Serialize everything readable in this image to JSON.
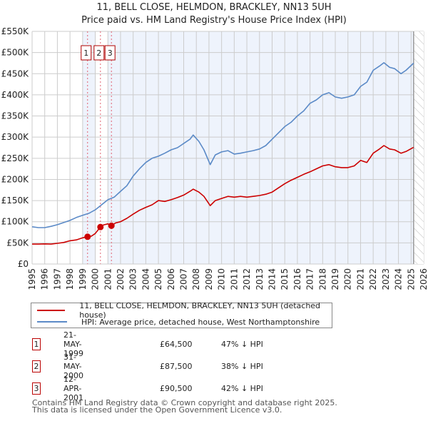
{
  "chart_data": {
    "type": "line",
    "title": "11, BELL CLOSE, HELMDON, BRACKLEY, NN13 5UH",
    "subtitle": "Price paid vs. HM Land Registry's House Price Index (HPI)",
    "xlabel": "",
    "ylabel": "",
    "xlim": [
      1995,
      2026
    ],
    "ylim": [
      0,
      550000
    ],
    "x_ticks": [
      "1995",
      "1996",
      "1997",
      "1998",
      "1999",
      "2000",
      "2001",
      "2002",
      "2003",
      "2004",
      "2005",
      "2006",
      "2007",
      "2008",
      "2009",
      "2010",
      "2011",
      "2012",
      "2013",
      "2014",
      "2015",
      "2016",
      "2017",
      "2018",
      "2019",
      "2020",
      "2021",
      "2022",
      "2023",
      "2024",
      "2025",
      "2026"
    ],
    "y_ticks": [
      {
        "value": 0,
        "label": "£0"
      },
      {
        "value": 50000,
        "label": "£50K"
      },
      {
        "value": 100000,
        "label": "£100K"
      },
      {
        "value": 150000,
        "label": "£150K"
      },
      {
        "value": 200000,
        "label": "£200K"
      },
      {
        "value": 250000,
        "label": "£250K"
      },
      {
        "value": 300000,
        "label": "£300K"
      },
      {
        "value": 350000,
        "label": "£350K"
      },
      {
        "value": 400000,
        "label": "£400K"
      },
      {
        "value": 450000,
        "label": "£450K"
      },
      {
        "value": 500000,
        "label": "£500K"
      },
      {
        "value": 550000,
        "label": "£550K"
      }
    ],
    "grid": true,
    "future_hatch_from": 2025.2,
    "shaded_bands": [
      [
        1999.0,
        2000.0
      ],
      [
        2001.0,
        2026.0
      ]
    ],
    "series": [
      {
        "name": "11, BELL CLOSE, HELMDON, BRACKLEY, NN13 5UH (detached house)",
        "color": "#cc0000",
        "x": [
          1995.0,
          1995.5,
          1996.0,
          1996.5,
          1997.0,
          1997.5,
          1998.0,
          1998.5,
          1999.0,
          1999.39,
          1999.7,
          2000.0,
          2000.41,
          2000.6,
          2001.0,
          2001.28,
          2001.6,
          2002.0,
          2002.5,
          2003.0,
          2003.5,
          2004.0,
          2004.5,
          2005.0,
          2005.5,
          2006.0,
          2006.5,
          2007.0,
          2007.5,
          2007.75,
          2008.2,
          2008.6,
          2009.1,
          2009.5,
          2010.0,
          2010.5,
          2011.0,
          2011.5,
          2012.0,
          2012.5,
          2013.0,
          2013.5,
          2014.0,
          2014.5,
          2015.0,
          2015.5,
          2016.0,
          2016.5,
          2017.0,
          2017.5,
          2018.0,
          2018.5,
          2019.0,
          2019.5,
          2020.0,
          2020.5,
          2021.0,
          2021.5,
          2022.0,
          2022.5,
          2022.85,
          2023.3,
          2023.7,
          2024.2,
          2024.6,
          2025.2
        ],
        "values": [
          47000,
          47000,
          47500,
          47000,
          49000,
          51000,
          55000,
          57000,
          62000,
          64500,
          66000,
          72000,
          87500,
          92000,
          95000,
          90500,
          97000,
          100000,
          108000,
          118000,
          127000,
          134000,
          140000,
          150000,
          148000,
          152000,
          157000,
          163000,
          172000,
          177000,
          170000,
          160000,
          138000,
          150000,
          155000,
          160000,
          158000,
          160000,
          158000,
          160000,
          162000,
          165000,
          170000,
          180000,
          190000,
          198000,
          205000,
          212000,
          218000,
          225000,
          232000,
          235000,
          230000,
          228000,
          228000,
          232000,
          245000,
          240000,
          262000,
          272000,
          280000,
          272000,
          270000,
          262000,
          266000,
          276000
        ]
      },
      {
        "name": "HPI: Average price, detached house, West Northamptonshire",
        "color": "#5b8ac7",
        "x": [
          1995.0,
          1995.5,
          1996.0,
          1996.5,
          1997.0,
          1997.5,
          1998.0,
          1998.5,
          1999.0,
          1999.5,
          2000.0,
          2000.5,
          2001.0,
          2001.5,
          2002.0,
          2002.5,
          2003.0,
          2003.5,
          2004.0,
          2004.5,
          2005.0,
          2005.5,
          2006.0,
          2006.5,
          2007.0,
          2007.5,
          2007.75,
          2008.2,
          2008.6,
          2009.1,
          2009.5,
          2010.0,
          2010.5,
          2011.0,
          2011.5,
          2012.0,
          2012.5,
          2013.0,
          2013.5,
          2014.0,
          2014.5,
          2015.0,
          2015.5,
          2016.0,
          2016.5,
          2017.0,
          2017.5,
          2018.0,
          2018.5,
          2019.0,
          2019.5,
          2020.0,
          2020.5,
          2021.0,
          2021.5,
          2022.0,
          2022.5,
          2022.85,
          2023.3,
          2023.7,
          2024.2,
          2024.6,
          2025.2
        ],
        "values": [
          88000,
          86000,
          86000,
          89000,
          93000,
          98000,
          103000,
          110000,
          115000,
          120000,
          128000,
          140000,
          152000,
          158000,
          172000,
          185000,
          208000,
          225000,
          240000,
          250000,
          255000,
          262000,
          270000,
          275000,
          285000,
          295000,
          305000,
          290000,
          270000,
          235000,
          258000,
          265000,
          268000,
          260000,
          262000,
          265000,
          268000,
          272000,
          280000,
          295000,
          310000,
          325000,
          335000,
          350000,
          362000,
          380000,
          388000,
          400000,
          405000,
          395000,
          392000,
          395000,
          400000,
          420000,
          430000,
          458000,
          468000,
          476000,
          465000,
          462000,
          450000,
          458000,
          475000
        ]
      }
    ],
    "sales": [
      {
        "n": "1",
        "x": 1999.39,
        "value": 64500
      },
      {
        "n": "2",
        "x": 2000.41,
        "value": 87500
      },
      {
        "n": "3",
        "x": 2001.28,
        "value": 90500
      }
    ]
  },
  "header": {
    "title": "11, BELL CLOSE, HELMDON, BRACKLEY, NN13 5UH",
    "subtitle": "Price paid vs. HM Land Registry's House Price Index (HPI)"
  },
  "legend": {
    "items": [
      {
        "label": "11, BELL CLOSE, HELMDON, BRACKLEY, NN13 5UH (detached house)",
        "color": "#cc0000"
      },
      {
        "label": "HPI: Average price, detached house, West Northamptonshire",
        "color": "#5b8ac7"
      }
    ]
  },
  "transactions": [
    {
      "n": "1",
      "date": "21-MAY-1999",
      "price": "£64,500",
      "hpi": "47% ↓ HPI"
    },
    {
      "n": "2",
      "date": "31-MAY-2000",
      "price": "£87,500",
      "hpi": "38% ↓ HPI"
    },
    {
      "n": "3",
      "date": "12-APR-2001",
      "price": "£90,500",
      "hpi": "42% ↓ HPI"
    }
  ],
  "footer": {
    "line1": "Contains HM Land Registry data © Crown copyright and database right 2025.",
    "line2": "This data is licensed under the Open Government Licence v3.0."
  }
}
